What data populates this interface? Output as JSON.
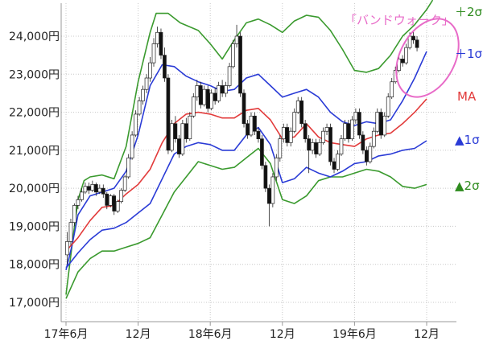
{
  "chart_data": {
    "type": "candlestick",
    "x_tick_labels": [
      "17年6月",
      "12月",
      "18年6月",
      "12月",
      "19年6月",
      "12月"
    ],
    "y_tick_labels": [
      "17,000円",
      "18,000円",
      "19,000円",
      "20,000円",
      "21,000円",
      "22,000円",
      "23,000円",
      "24,000円"
    ],
    "y_ticks": [
      17000,
      18000,
      19000,
      20000,
      21000,
      22000,
      23000,
      24000
    ],
    "ylim": [
      16700,
      24800
    ],
    "x_range_months": [
      0,
      31
    ],
    "x_tick_months": [
      0,
      6,
      12,
      18,
      24,
      30
    ],
    "grid": "dotted",
    "band_labels": {
      "plus2": "＋2σ",
      "plus1": "＋1σ",
      "ma": "MA",
      "minus1": "▲1σ",
      "minus2": "▲2σ"
    },
    "annotation": "「バンドウォーク」",
    "colors": {
      "ma": "#e23b3b",
      "sigma1": "#2a3bd6",
      "sigma2": "#3a9a2e",
      "annotation": "#e86bc8",
      "up_candle": "#ffffff",
      "down_candle": "#111111"
    },
    "series": {
      "plus2": [
        [
          0,
          17200
        ],
        [
          0.5,
          18500
        ],
        [
          1,
          19700
        ],
        [
          1.5,
          20200
        ],
        [
          2,
          20300
        ],
        [
          3,
          20350
        ],
        [
          4,
          20250
        ],
        [
          5,
          21100
        ],
        [
          6,
          22800
        ],
        [
          7,
          24100
        ],
        [
          7.5,
          24600
        ],
        [
          8.5,
          24600
        ],
        [
          9.5,
          24350
        ],
        [
          11,
          24150
        ],
        [
          12,
          23800
        ],
        [
          13,
          23400
        ],
        [
          14,
          23900
        ],
        [
          15,
          24350
        ],
        [
          16,
          24450
        ],
        [
          17,
          24300
        ],
        [
          18,
          24100
        ],
        [
          19,
          24400
        ],
        [
          20,
          24550
        ],
        [
          21,
          24500
        ],
        [
          22,
          24150
        ],
        [
          23,
          23650
        ],
        [
          24,
          23100
        ],
        [
          25,
          23050
        ],
        [
          26,
          23150
        ],
        [
          27,
          23500
        ],
        [
          28,
          24000
        ],
        [
          29,
          24300
        ],
        [
          30,
          24700
        ],
        [
          30.5,
          24950
        ]
      ],
      "plus1": [
        [
          0,
          17850
        ],
        [
          0.5,
          18500
        ],
        [
          1,
          19300
        ],
        [
          2,
          19800
        ],
        [
          3,
          19900
        ],
        [
          4,
          20000
        ],
        [
          5,
          20450
        ],
        [
          6,
          21400
        ],
        [
          7,
          22700
        ],
        [
          8,
          23250
        ],
        [
          9,
          23200
        ],
        [
          10,
          22950
        ],
        [
          11,
          22800
        ],
        [
          12,
          22700
        ],
        [
          13,
          22550
        ],
        [
          14,
          22600
        ],
        [
          15,
          22900
        ],
        [
          16,
          23000
        ],
        [
          17,
          22700
        ],
        [
          18,
          22400
        ],
        [
          19,
          22500
        ],
        [
          20,
          22600
        ],
        [
          21,
          22400
        ],
        [
          22,
          22000
        ],
        [
          23,
          21750
        ],
        [
          24,
          21650
        ],
        [
          25,
          21750
        ],
        [
          26,
          21700
        ],
        [
          27,
          21800
        ],
        [
          28,
          22300
        ],
        [
          29,
          22900
        ],
        [
          30,
          23600
        ]
      ],
      "ma": [
        [
          0,
          18350
        ],
        [
          1,
          18700
        ],
        [
          2,
          19150
        ],
        [
          3,
          19500
        ],
        [
          4,
          19550
        ],
        [
          5,
          19850
        ],
        [
          6,
          20100
        ],
        [
          7,
          20500
        ],
        [
          8,
          21200
        ],
        [
          9,
          21700
        ],
        [
          10,
          21950
        ],
        [
          11,
          22000
        ],
        [
          12,
          21950
        ],
        [
          13,
          21850
        ],
        [
          14,
          21850
        ],
        [
          15,
          22050
        ],
        [
          16,
          22100
        ],
        [
          17,
          21800
        ],
        [
          18,
          21300
        ],
        [
          19,
          21350
        ],
        [
          20,
          21700
        ],
        [
          21,
          21350
        ],
        [
          22,
          21200
        ],
        [
          23,
          21150
        ],
        [
          24,
          21100
        ],
        [
          25,
          21300
        ],
        [
          26,
          21400
        ],
        [
          27,
          21450
        ],
        [
          28,
          21700
        ],
        [
          29,
          22000
        ],
        [
          30,
          22350
        ]
      ],
      "minus1": [
        [
          0,
          17900
        ],
        [
          1,
          18300
        ],
        [
          2,
          18650
        ],
        [
          3,
          18900
        ],
        [
          4,
          18950
        ],
        [
          5,
          19100
        ],
        [
          6,
          19350
        ],
        [
          7,
          19600
        ],
        [
          8,
          20250
        ],
        [
          9,
          20900
        ],
        [
          10,
          21100
        ],
        [
          11,
          21200
        ],
        [
          12,
          21150
        ],
        [
          13,
          21000
        ],
        [
          14,
          21000
        ],
        [
          15,
          21400
        ],
        [
          16,
          21600
        ],
        [
          17,
          21150
        ],
        [
          18,
          20150
        ],
        [
          19,
          20250
        ],
        [
          20,
          20550
        ],
        [
          21,
          20400
        ],
        [
          22,
          20300
        ],
        [
          23,
          20450
        ],
        [
          24,
          20650
        ],
        [
          25,
          20700
        ],
        [
          26,
          20850
        ],
        [
          27,
          20900
        ],
        [
          28,
          21000
        ],
        [
          29,
          21050
        ],
        [
          30,
          21250
        ]
      ],
      "minus2": [
        [
          0,
          17100
        ],
        [
          1,
          17800
        ],
        [
          2,
          18150
        ],
        [
          3,
          18350
        ],
        [
          4,
          18350
        ],
        [
          5,
          18450
        ],
        [
          6,
          18550
        ],
        [
          7,
          18700
        ],
        [
          8,
          19300
        ],
        [
          9,
          19900
        ],
        [
          10,
          20300
        ],
        [
          11,
          20700
        ],
        [
          12,
          20600
        ],
        [
          13,
          20500
        ],
        [
          14,
          20550
        ],
        [
          15,
          20800
        ],
        [
          16,
          21050
        ],
        [
          17,
          20650
        ],
        [
          18,
          19700
        ],
        [
          19,
          19600
        ],
        [
          20,
          19800
        ],
        [
          21,
          20200
        ],
        [
          22,
          20300
        ],
        [
          23,
          20300
        ],
        [
          24,
          20400
        ],
        [
          25,
          20500
        ],
        [
          26,
          20450
        ],
        [
          27,
          20300
        ],
        [
          28,
          20050
        ],
        [
          29,
          20000
        ],
        [
          30,
          20100
        ]
      ],
      "candles": [
        [
          0.1,
          18250,
          18600,
          18000,
          18850
        ],
        [
          0.4,
          18600,
          19100,
          18500,
          19200
        ],
        [
          0.7,
          19100,
          19550,
          19000,
          19600
        ],
        [
          1.0,
          19550,
          19700,
          19450,
          19800
        ],
        [
          1.3,
          19700,
          19900,
          19650,
          20000
        ],
        [
          1.6,
          19900,
          20050,
          19850,
          20150
        ],
        [
          1.9,
          20050,
          19950,
          19850,
          20150
        ],
        [
          2.2,
          19950,
          20100,
          19900,
          20200
        ],
        [
          2.5,
          20100,
          19900,
          19800,
          20150
        ],
        [
          2.8,
          19900,
          20000,
          19850,
          20100
        ],
        [
          3.1,
          20000,
          19850,
          19750,
          20100
        ],
        [
          3.4,
          19850,
          19550,
          19450,
          19900
        ],
        [
          3.7,
          19550,
          19800,
          19500,
          19850
        ],
        [
          4.0,
          19800,
          19400,
          19300,
          19850
        ],
        [
          4.3,
          19400,
          19650,
          19350,
          19700
        ],
        [
          4.6,
          19650,
          19950,
          19600,
          20000
        ],
        [
          4.9,
          19950,
          20300,
          19900,
          20350
        ],
        [
          5.2,
          20300,
          20800,
          20250,
          20900
        ],
        [
          5.5,
          20800,
          21400,
          20750,
          21500
        ],
        [
          5.8,
          21400,
          21950,
          21350,
          22050
        ],
        [
          6.1,
          21950,
          22300,
          21900,
          22400
        ],
        [
          6.4,
          22300,
          22600,
          22200,
          22700
        ],
        [
          6.7,
          22600,
          22900,
          22500,
          23000
        ],
        [
          7.0,
          22900,
          23300,
          22800,
          23450
        ],
        [
          7.3,
          23300,
          23800,
          23200,
          23950
        ],
        [
          7.6,
          23800,
          24100,
          23700,
          24250
        ],
        [
          7.9,
          24100,
          23500,
          23400,
          24200
        ],
        [
          8.2,
          23500,
          22900,
          22800,
          23700
        ],
        [
          8.5,
          22900,
          21000,
          20900,
          23000
        ],
        [
          8.8,
          21000,
          21700,
          20950,
          21800
        ],
        [
          9.1,
          21700,
          21300,
          21200,
          21900
        ],
        [
          9.4,
          21300,
          20900,
          20800,
          21400
        ],
        [
          9.7,
          20900,
          21700,
          20850,
          21800
        ],
        [
          10.0,
          21700,
          21300,
          21200,
          21850
        ],
        [
          10.3,
          21300,
          21900,
          21250,
          22000
        ],
        [
          10.6,
          21900,
          22400,
          21850,
          22500
        ],
        [
          10.9,
          22400,
          22700,
          22300,
          22850
        ],
        [
          11.2,
          22700,
          22200,
          22100,
          22800
        ],
        [
          11.5,
          22200,
          22600,
          22150,
          22700
        ],
        [
          11.8,
          22600,
          22100,
          22000,
          22700
        ],
        [
          12.1,
          22100,
          22500,
          22050,
          22600
        ],
        [
          12.4,
          22500,
          22300,
          22200,
          22650
        ],
        [
          12.7,
          22300,
          22700,
          22250,
          22800
        ],
        [
          13.0,
          22700,
          22500,
          22400,
          22850
        ],
        [
          13.3,
          22500,
          22700,
          22400,
          22800
        ],
        [
          13.6,
          22700,
          23200,
          22650,
          23300
        ],
        [
          13.9,
          23200,
          23800,
          23150,
          23900
        ],
        [
          14.2,
          23800,
          24000,
          23700,
          24300
        ],
        [
          14.5,
          24000,
          22500,
          22400,
          24100
        ],
        [
          14.8,
          22500,
          21700,
          21600,
          22600
        ],
        [
          15.1,
          21700,
          21400,
          21300,
          21800
        ],
        [
          15.4,
          21400,
          21900,
          21350,
          22000
        ],
        [
          15.7,
          21900,
          21500,
          21400,
          22000
        ],
        [
          16.0,
          21500,
          21300,
          21200,
          21600
        ],
        [
          16.3,
          21300,
          20600,
          20500,
          21400
        ],
        [
          16.6,
          20600,
          20000,
          19900,
          20700
        ],
        [
          16.9,
          20000,
          19600,
          19000,
          20100
        ],
        [
          17.2,
          19600,
          20300,
          19500,
          20400
        ],
        [
          17.5,
          20300,
          20800,
          20200,
          20900
        ],
        [
          17.8,
          20800,
          21300,
          20700,
          21400
        ],
        [
          18.1,
          21300,
          21600,
          21200,
          21700
        ],
        [
          18.4,
          21600,
          21200,
          21100,
          21700
        ],
        [
          18.7,
          21200,
          21500,
          21100,
          21600
        ],
        [
          19.0,
          21500,
          22000,
          21450,
          22100
        ],
        [
          19.3,
          22000,
          22300,
          21950,
          22400
        ],
        [
          19.6,
          22300,
          21700,
          21600,
          22400
        ],
        [
          19.9,
          21700,
          21300,
          21200,
          21800
        ],
        [
          20.2,
          21300,
          21000,
          20400,
          21400
        ],
        [
          20.5,
          21000,
          21200,
          20900,
          21300
        ],
        [
          20.8,
          21200,
          20900,
          20800,
          21300
        ],
        [
          21.1,
          20900,
          21200,
          20850,
          21300
        ],
        [
          21.4,
          21200,
          21500,
          21150,
          21600
        ],
        [
          21.7,
          21500,
          21600,
          21400,
          21700
        ],
        [
          22.0,
          21600,
          20700,
          20600,
          21700
        ],
        [
          22.3,
          20700,
          20500,
          20400,
          20800
        ],
        [
          22.6,
          20500,
          20900,
          20450,
          21000
        ],
        [
          22.9,
          20900,
          21300,
          20850,
          21400
        ],
        [
          23.2,
          21300,
          21700,
          21250,
          21800
        ],
        [
          23.5,
          21700,
          21300,
          21200,
          21800
        ],
        [
          23.8,
          21300,
          21800,
          21250,
          21900
        ],
        [
          24.1,
          21800,
          22000,
          21700,
          22100
        ],
        [
          24.4,
          22000,
          21400,
          21300,
          22100
        ],
        [
          24.7,
          21400,
          21000,
          20900,
          21500
        ],
        [
          25.0,
          21000,
          20700,
          20600,
          21100
        ],
        [
          25.3,
          20700,
          21100,
          20650,
          21200
        ],
        [
          25.6,
          21100,
          21500,
          21050,
          21600
        ],
        [
          25.9,
          21500,
          22000,
          21450,
          22100
        ],
        [
          26.2,
          22000,
          21400,
          21300,
          22100
        ],
        [
          26.5,
          21400,
          21900,
          21350,
          22000
        ],
        [
          26.8,
          21900,
          22400,
          21850,
          22500
        ],
        [
          27.1,
          22400,
          22800,
          22350,
          22900
        ],
        [
          27.4,
          22800,
          23100,
          22750,
          23200
        ],
        [
          27.7,
          23100,
          23400,
          23050,
          23500
        ],
        [
          28.0,
          23400,
          23300,
          23200,
          23500
        ],
        [
          28.3,
          23300,
          23700,
          23250,
          23800
        ],
        [
          28.6,
          23700,
          24000,
          23650,
          24100
        ],
        [
          28.9,
          24000,
          23900,
          23800,
          24150
        ],
        [
          29.2,
          23900,
          23700,
          23600,
          24000
        ]
      ]
    }
  }
}
